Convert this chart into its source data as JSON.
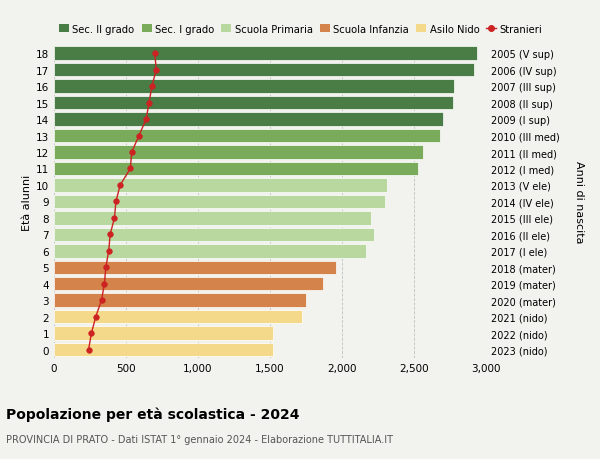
{
  "ages": [
    18,
    17,
    16,
    15,
    14,
    13,
    12,
    11,
    10,
    9,
    8,
    7,
    6,
    5,
    4,
    3,
    2,
    1,
    0
  ],
  "right_labels": [
    "2005 (V sup)",
    "2006 (IV sup)",
    "2007 (III sup)",
    "2008 (II sup)",
    "2009 (I sup)",
    "2010 (III med)",
    "2011 (II med)",
    "2012 (I med)",
    "2013 (V ele)",
    "2014 (IV ele)",
    "2015 (III ele)",
    "2016 (II ele)",
    "2017 (I ele)",
    "2018 (mater)",
    "2019 (mater)",
    "2020 (mater)",
    "2021 (nido)",
    "2022 (nido)",
    "2023 (nido)"
  ],
  "bar_values": [
    2940,
    2920,
    2780,
    2770,
    2700,
    2680,
    2560,
    2530,
    2310,
    2300,
    2200,
    2220,
    2170,
    1960,
    1870,
    1750,
    1720,
    1520,
    1520
  ],
  "bar_colors": [
    "#4a7c45",
    "#4a7c45",
    "#4a7c45",
    "#4a7c45",
    "#4a7c45",
    "#7aab5a",
    "#7aab5a",
    "#7aab5a",
    "#b8d8a0",
    "#b8d8a0",
    "#b8d8a0",
    "#b8d8a0",
    "#b8d8a0",
    "#d4834a",
    "#d4834a",
    "#d4834a",
    "#f5d98a",
    "#f5d98a",
    "#f5d98a"
  ],
  "stranieri_values": [
    700,
    710,
    680,
    660,
    640,
    590,
    540,
    530,
    460,
    430,
    420,
    390,
    380,
    360,
    350,
    330,
    290,
    260,
    240
  ],
  "legend_labels": [
    "Sec. II grado",
    "Sec. I grado",
    "Scuola Primaria",
    "Scuola Infanzia",
    "Asilo Nido",
    "Stranieri"
  ],
  "legend_colors": [
    "#4a7c45",
    "#7aab5a",
    "#b8d8a0",
    "#d4834a",
    "#f5d98a",
    "#cc2222"
  ],
  "title": "Popolazione per età scolastica - 2024",
  "subtitle": "PROVINCIA DI PRATO - Dati ISTAT 1° gennaio 2024 - Elaborazione TUTTITALIA.IT",
  "ylabel_left": "Età alunni",
  "ylabel_right": "Anni di nascita",
  "xlim": [
    0,
    3000
  ],
  "xticks": [
    0,
    500,
    1000,
    1500,
    2000,
    2500,
    3000
  ],
  "xtick_labels": [
    "0",
    "500",
    "1,000",
    "1,500",
    "2,000",
    "2,500",
    "3,000"
  ],
  "background_color": "#f2f2ee"
}
